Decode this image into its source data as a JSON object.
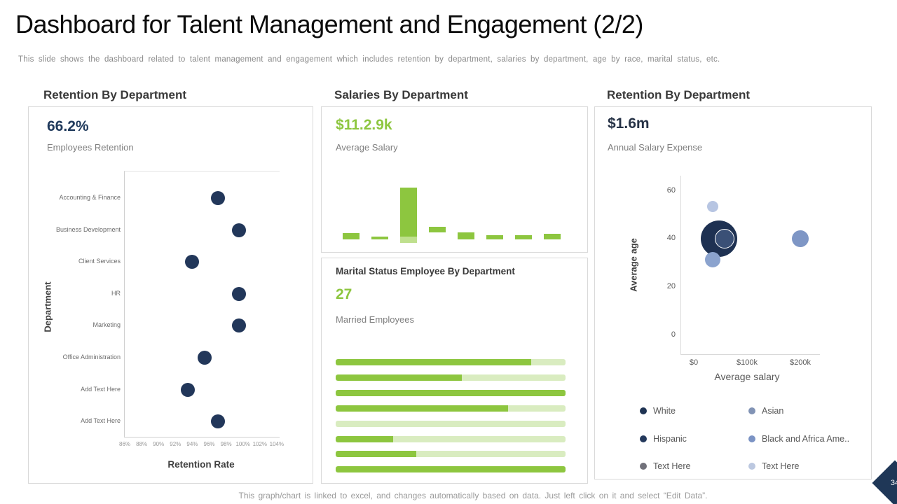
{
  "slide": {
    "title": "Dashboard for Talent Management and Engagement (2/2)",
    "subtitle": "This slide shows the dashboard related to talent management and engagement which includes retention by department, salaries by department, age by race, marital status, etc.",
    "footer": "This graph/chart is linked to excel, and changes automatically based on data. Just left click on it and select “Edit Data”.",
    "page_number": "34"
  },
  "colors": {
    "navy": "#203a5c",
    "navy_dark": "#1e3152",
    "green": "#8dc63f",
    "green_light_track": "#d9ecc0",
    "green_light_base": "#bfe08e",
    "card_border": "#d9d9d9"
  },
  "chart_data": [
    {
      "id": "retention-by-department-dot-plot",
      "type": "scatter",
      "title": "Retention By Department",
      "kpi": {
        "value": "66.2%",
        "label": "Employees Retention"
      },
      "categories": [
        "Accounting & Finance",
        "Business Development",
        "Client  Services",
        "HR",
        "Marketing",
        "Office Administration",
        "Add Text Here",
        "Add Text Here"
      ],
      "values_pct": [
        97,
        99.5,
        94,
        99.5,
        99.5,
        95.5,
        93.5,
        97
      ],
      "xlabel": "Retention Rate",
      "ylabel": "Department",
      "xlim": [
        86,
        104
      ],
      "x_ticks": [
        "86%",
        "88%",
        "90%",
        "92%",
        "94%",
        "96%",
        "98%",
        "100%",
        "102%",
        "104%"
      ],
      "grid": false,
      "dot_color": "#22375a"
    },
    {
      "id": "salaries-by-department-bar",
      "type": "bar",
      "title": "Salaries By Department",
      "kpi": {
        "value": "$11.2.9k",
        "label": "Average Salary"
      },
      "bars": [
        {
          "height": 9
        },
        {
          "height": 4
        },
        {
          "height": 70,
          "base_height": 9
        },
        {
          "height": 8,
          "lift": 10
        },
        {
          "height": 10
        },
        {
          "height": 6
        },
        {
          "height": 6
        },
        {
          "height": 8
        }
      ],
      "note": "eight unlabeled department bars; heights in drawn relative units, bar 4 floats above baseline, bar 3 has a light-green base segment",
      "bar_color": "#8dc63f",
      "base_color": "#bfe08e"
    },
    {
      "id": "marital-status-horizontal-bars",
      "type": "bar",
      "orientation": "horizontal",
      "title": "Marital Status Employee By Department",
      "kpi": {
        "value": "27",
        "label": "Married Employees"
      },
      "fill_percents": [
        85,
        55,
        100,
        75,
        0,
        25,
        35,
        100
      ],
      "fill_color": "#8dc63f",
      "track_color": "#d9ecc0"
    },
    {
      "id": "age-by-race-bubble",
      "type": "scatter",
      "title": "Retention By Department",
      "kpi": {
        "value": "$1.6m",
        "label": "Annual Salary Expense"
      },
      "xlabel": "Average salary",
      "ylabel": "Average age",
      "x_ticks": [
        {
          "value": 0,
          "label": "$0"
        },
        {
          "value": 100,
          "label": "$100k"
        },
        {
          "value": 200,
          "label": "$200k"
        }
      ],
      "y_ticks": [
        60,
        40,
        20,
        0
      ],
      "ylim": [
        -8,
        66
      ],
      "points": [
        {
          "salary_k": 35,
          "age": 53.5,
          "radius": 8,
          "color": "#b7c5e2"
        },
        {
          "salary_k": 48,
          "age": 40,
          "radius": 26,
          "color": "#1e3152"
        },
        {
          "salary_k": 57,
          "age": 40.5,
          "radius": 13,
          "color": "#3a5076",
          "ring": true
        },
        {
          "salary_k": 35,
          "age": 31.5,
          "radius": 11,
          "color": "#8ba3ce"
        },
        {
          "salary_k": 200,
          "age": 40,
          "radius": 12,
          "color": "#7e96c5"
        }
      ],
      "legend": [
        {
          "label": "White",
          "color": "#1f3353"
        },
        {
          "label": "Asian",
          "color": "#8193b5"
        },
        {
          "label": "Hispanic",
          "color": "#24395c"
        },
        {
          "label": "Black and Africa Ame..",
          "color": "#7b93c4"
        },
        {
          "label": "Text Here",
          "color": "#71717a"
        },
        {
          "label": "Text Here",
          "color": "#bcc8e0"
        }
      ],
      "legend_position": "bottom"
    }
  ]
}
